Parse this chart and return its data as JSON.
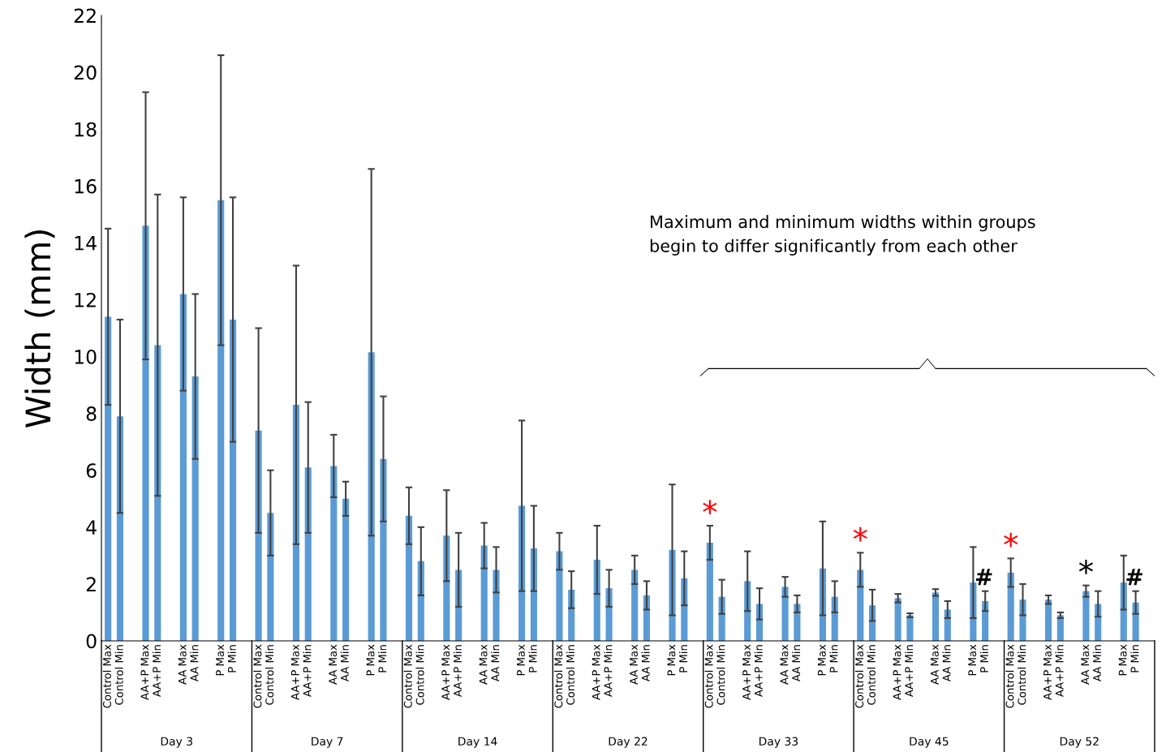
{
  "chart_data": {
    "type": "bar",
    "ylabel": "Width (mm)",
    "categories": [
      "Control Max",
      "Control Min",
      "AA+P Max",
      "AA+P Min",
      "AA Max",
      "AA Min",
      "P Max",
      "P Min",
      "Control Max",
      "Control Min",
      "AA+P Max",
      "AA+P Min",
      "AA Max",
      "AA Min",
      "P Max",
      "P Min",
      "Control Max",
      "Control Min",
      "AA+P Max",
      "AA+P Min",
      "AA Max",
      "AA Min",
      "P Max",
      "P Min",
      "Control Max",
      "Control Min",
      "AA+P Max",
      "AA+P Min",
      "AA Max",
      "AA Min",
      "P Max",
      "P Min",
      "Control Max",
      "Control Min",
      "AA+P Max",
      "AA+P Min",
      "AA Max",
      "AA Min",
      "P Max",
      "P Min",
      "Control Max",
      "Control Min",
      "AA+P Max",
      "AA+P Min",
      "AA Max",
      "AA Min",
      "P Max",
      "P Min",
      "Control Max",
      "Control Min",
      "AA+P Max",
      "AA+P Min",
      "AA Max",
      "AA Min",
      "P Max",
      "P Min"
    ],
    "values": [
      11.4,
      7.9,
      14.6,
      10.4,
      12.2,
      9.3,
      15.5,
      11.3,
      7.4,
      4.5,
      8.3,
      6.1,
      6.15,
      5.0,
      10.15,
      6.4,
      4.4,
      2.8,
      3.7,
      2.5,
      3.35,
      2.5,
      4.75,
      3.25,
      3.15,
      1.8,
      2.85,
      1.85,
      2.5,
      1.6,
      3.2,
      2.2,
      3.45,
      1.55,
      2.1,
      1.3,
      1.9,
      1.3,
      2.55,
      1.55,
      2.5,
      1.25,
      1.5,
      0.9,
      1.7,
      1.1,
      2.05,
      1.4,
      2.4,
      1.45,
      1.45,
      0.9,
      1.75,
      1.3,
      2.05,
      1.35
    ],
    "errors": [
      3.1,
      3.4,
      4.7,
      5.3,
      3.4,
      2.9,
      5.1,
      4.3,
      3.6,
      1.5,
      4.9,
      2.3,
      1.1,
      0.6,
      6.45,
      2.2,
      1.0,
      1.2,
      1.6,
      1.3,
      0.8,
      0.8,
      3.0,
      1.5,
      0.65,
      0.65,
      1.2,
      0.65,
      0.5,
      0.5,
      2.3,
      0.95,
      0.6,
      0.6,
      1.05,
      0.55,
      0.35,
      0.3,
      1.65,
      0.55,
      0.6,
      0.55,
      0.15,
      0.07,
      0.12,
      0.3,
      1.25,
      0.35,
      0.5,
      0.55,
      0.15,
      0.1,
      0.2,
      0.45,
      0.95,
      0.4
    ],
    "color": "#5b9bd5",
    "ylim": [
      0,
      22
    ],
    "yticks": [
      0,
      2,
      4,
      6,
      8,
      10,
      12,
      14,
      16,
      18,
      20,
      22
    ],
    "grid": false,
    "legend": false,
    "annotations": [
      "Maximum and minimum widths within groups\nbegin to differ significantly from each other",
      "Day 3",
      "Day 7",
      "Day 14",
      "Day 22",
      "Day 33",
      "Day 45",
      "Day 52",
      "*",
      "*",
      "*",
      "*",
      "#",
      "#"
    ]
  }
}
